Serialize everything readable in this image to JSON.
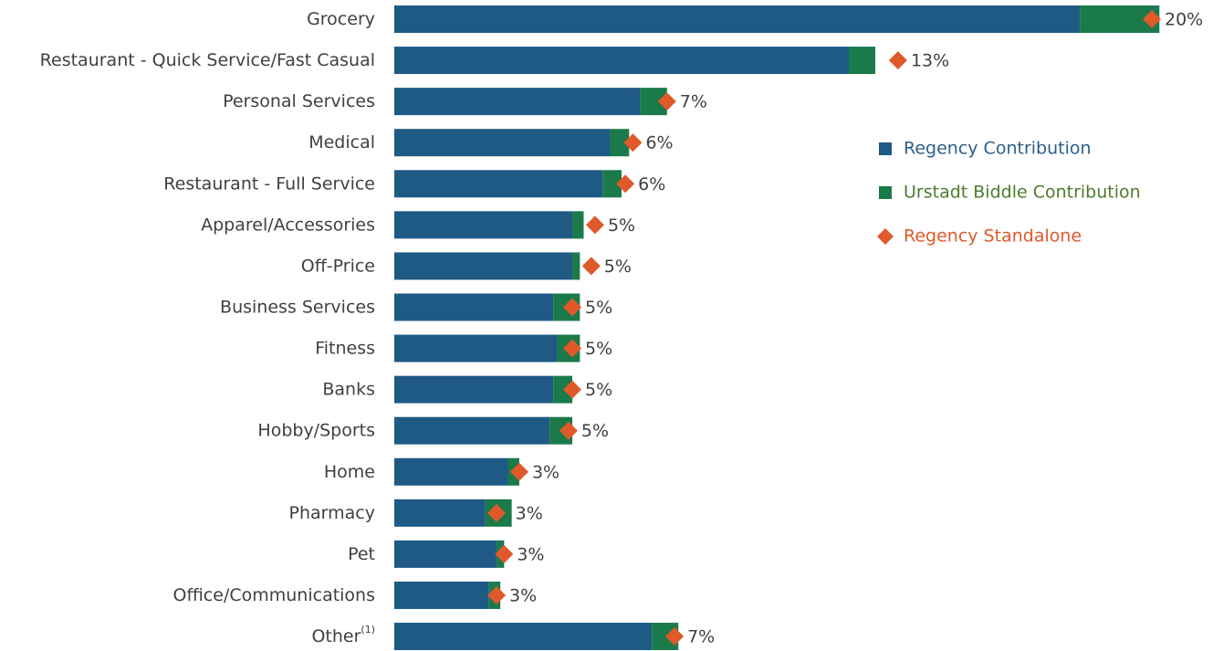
{
  "chart_data": {
    "type": "stacked-barh",
    "categories": [
      "Grocery",
      "Restaurant - Quick Service/Fast Casual",
      "Personal Services",
      "Medical",
      "Restaurant - Full Service",
      "Apparel/Accessories",
      "Off-Price",
      "Business Services",
      "Fitness",
      "Banks",
      "Hobby/Sports",
      "Home",
      "Pharmacy",
      "Pet",
      "Office/Communications",
      "Other"
    ],
    "category_footnote": {
      "index": 15,
      "label": "(1)"
    },
    "series": [
      {
        "name": "Regency Contribution",
        "color": "#1f5a85",
        "values": [
          18.1,
          12.0,
          6.5,
          5.7,
          5.5,
          4.7,
          4.7,
          4.2,
          4.3,
          4.2,
          4.1,
          3.0,
          2.4,
          2.7,
          2.5,
          6.8
        ]
      },
      {
        "name": "Urstadt Biddle Contribution",
        "color": "#1b7a4a",
        "values": [
          2.1,
          0.7,
          0.7,
          0.5,
          0.5,
          0.3,
          0.2,
          0.7,
          0.6,
          0.5,
          0.6,
          0.3,
          0.7,
          0.2,
          0.3,
          0.7
        ]
      },
      {
        "name": "Regency Standalone",
        "color": "#e0592a",
        "marker": "diamond",
        "values": [
          20.0,
          13.3,
          7.2,
          6.3,
          6.1,
          5.3,
          5.2,
          4.7,
          4.7,
          4.7,
          4.6,
          3.3,
          2.7,
          2.9,
          2.7,
          7.4
        ],
        "value_labels": [
          "20%",
          "13%",
          "7%",
          "6%",
          "6%",
          "5%",
          "5%",
          "5%",
          "5%",
          "5%",
          "5%",
          "3%",
          "3%",
          "3%",
          "3%",
          "7%"
        ]
      }
    ],
    "legend_text_colors": [
      "#2d5f8a",
      "#4e7a2e",
      "#e0592a"
    ]
  }
}
